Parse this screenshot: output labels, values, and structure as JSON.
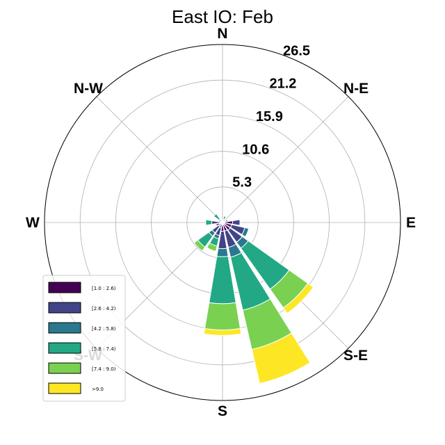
{
  "chart_data": {
    "type": "windrose",
    "title": "East IO: Feb",
    "directions": [
      "N",
      "N-E",
      "E",
      "S-E",
      "S",
      "S-W",
      "W",
      "N-W"
    ],
    "radial_ticks": [
      "5.3",
      "10.6",
      "15.9",
      "21.2",
      "26.5"
    ],
    "radial_values": [
      5.3,
      10.6,
      15.9,
      21.2,
      26.5
    ],
    "rmax": 26.5,
    "bins": [
      {
        "label": "[1.0 : 2.6)",
        "color": "#440154"
      },
      {
        "label": "[2.6 : 4.2)",
        "color": "#414487"
      },
      {
        "label": "[4.2 : 5.8)",
        "color": "#2a788e"
      },
      {
        "label": "[5.8 : 7.4)",
        "color": "#22a884"
      },
      {
        "label": "[7.4 : 9.0)",
        "color": "#7ad151"
      },
      {
        "label": ">9.0",
        "color": "#fde725"
      }
    ],
    "sectors": [
      {
        "angle": 0,
        "values": [
          0.3,
          0.2,
          0.0,
          0.0,
          0.0,
          0.0
        ]
      },
      {
        "angle": 22.5,
        "values": [
          0.3,
          0.2,
          0.0,
          0.5,
          0.0,
          0.0
        ]
      },
      {
        "angle": 45,
        "values": [
          0.3,
          0.2,
          0.0,
          0.0,
          0.0,
          0.0
        ]
      },
      {
        "angle": 67.5,
        "values": [
          0.5,
          0.3,
          0.0,
          0.0,
          0.0,
          0.0
        ]
      },
      {
        "angle": 90,
        "values": [
          1.5,
          1.1,
          0.0,
          0.0,
          0.0,
          0.0
        ]
      },
      {
        "angle": 112.5,
        "values": [
          1.4,
          2.0,
          0.6,
          0.0,
          0.0,
          0.0
        ]
      },
      {
        "angle": 135,
        "values": [
          1.4,
          2.2,
          1.1,
          7.5,
          3.4,
          1.0
        ]
      },
      {
        "angle": 157.5,
        "values": [
          1.3,
          2.5,
          1.5,
          8.1,
          6.0,
          5.2
        ]
      },
      {
        "angle": 180,
        "values": [
          1.3,
          2.6,
          1.2,
          7.0,
          3.9,
          0.8
        ]
      },
      {
        "angle": 202.5,
        "values": [
          0.8,
          1.2,
          0.5,
          1.1,
          0.8,
          0.0
        ]
      },
      {
        "angle": 225,
        "values": [
          0.7,
          1.2,
          0.6,
          2.0,
          0.7,
          0.0
        ]
      },
      {
        "angle": 247.5,
        "values": [
          0.5,
          0.5,
          0.0,
          0.0,
          0.0,
          0.0
        ]
      },
      {
        "angle": 270,
        "values": [
          0.3,
          1.3,
          0.0,
          0.9,
          0.0,
          0.0
        ]
      },
      {
        "angle": 292.5,
        "values": [
          0.3,
          0.3,
          0.0,
          0.0,
          0.0,
          0.0
        ]
      },
      {
        "angle": 315,
        "values": [
          0.3,
          0.3,
          0.0,
          1.0,
          0.0,
          0.0
        ]
      },
      {
        "angle": 337.5,
        "values": [
          0.3,
          0.2,
          0.0,
          0.0,
          0.0,
          0.0
        ]
      }
    ],
    "legend_position": "lower-left",
    "grid": true
  }
}
